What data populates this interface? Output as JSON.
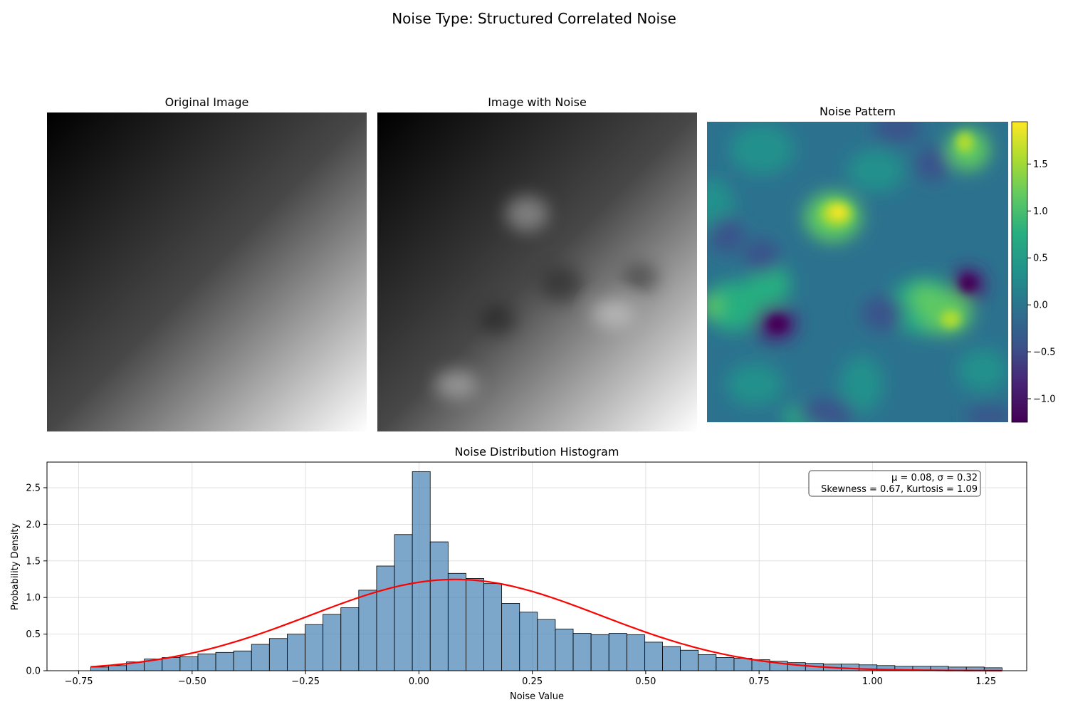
{
  "suptitle": "Noise Type: Structured Correlated Noise",
  "panels": {
    "original": {
      "title": "Original Image"
    },
    "noisy": {
      "title": "Image with Noise"
    },
    "noise": {
      "title": "Noise Pattern"
    }
  },
  "colorbar": {
    "colormap": "viridis",
    "range": [
      -1.25,
      1.95
    ],
    "ticks": [
      -1.0,
      -0.5,
      0.0,
      0.5,
      1.0,
      1.5
    ],
    "tick_labels": [
      "−1.0",
      "−0.5",
      "0.0",
      "0.5",
      "1.0",
      "1.5"
    ]
  },
  "chart_data": {
    "type": "bar",
    "title": "Noise Distribution Histogram",
    "xlabel": "Noise Value",
    "ylabel": "Probability Density",
    "xlim": [
      -0.82,
      1.34
    ],
    "ylim": [
      0,
      2.85
    ],
    "grid": true,
    "xticks": [
      -0.75,
      -0.5,
      -0.25,
      0.0,
      0.25,
      0.5,
      0.75,
      1.0,
      1.25
    ],
    "xtick_labels": [
      "−0.75",
      "−0.50",
      "−0.25",
      "0.00",
      "0.25",
      "0.50",
      "0.75",
      "1.00",
      "1.25"
    ],
    "yticks": [
      0.0,
      0.5,
      1.0,
      1.5,
      2.0,
      2.5
    ],
    "ytick_labels": [
      "0.0",
      "0.5",
      "1.0",
      "1.5",
      "2.0",
      "2.5"
    ],
    "bin_start": -0.7237,
    "bin_width": 0.0394,
    "values": [
      0.05,
      0.07,
      0.12,
      0.16,
      0.18,
      0.19,
      0.23,
      0.25,
      0.27,
      0.36,
      0.44,
      0.5,
      0.63,
      0.77,
      0.86,
      1.1,
      1.43,
      1.86,
      2.72,
      1.76,
      1.33,
      1.26,
      1.19,
      0.92,
      0.8,
      0.7,
      0.57,
      0.51,
      0.49,
      0.51,
      0.49,
      0.39,
      0.33,
      0.28,
      0.22,
      0.18,
      0.17,
      0.15,
      0.13,
      0.11,
      0.1,
      0.09,
      0.09,
      0.08,
      0.07,
      0.06,
      0.06,
      0.06,
      0.05,
      0.05,
      0.04
    ],
    "bar_color": "#4682b4",
    "fit_curve": {
      "type": "normal",
      "mean": 0.08,
      "std": 0.32,
      "color": "#ff0000"
    },
    "annotation_lines": [
      "μ = 0.08, σ = 0.32",
      "Skewness = 0.67, Kurtosis = 1.09"
    ],
    "legend_position": "top-right"
  }
}
